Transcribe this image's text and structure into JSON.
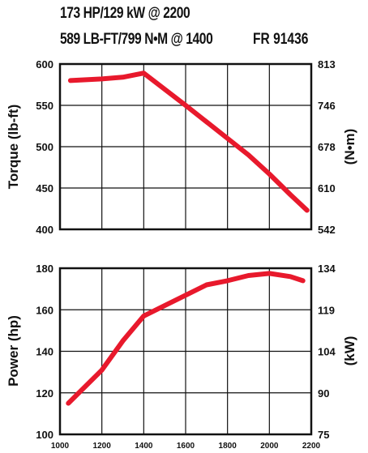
{
  "header": {
    "line1": "173 HP/129 kW @ 2200",
    "line2": "589 LB-FT/799 N•M @ 1400",
    "code": "FR 91436"
  },
  "colors": {
    "curve": "#e8192c",
    "grid": "#111111"
  },
  "chart_data": [
    {
      "type": "line",
      "title": "",
      "xlabel": "",
      "ylabel": "Torque (lb-ft)",
      "y2label": "(N•m)",
      "xlim": [
        1000,
        2200
      ],
      "ylim": [
        400,
        600
      ],
      "y2lim": [
        542,
        813
      ],
      "y_ticks": [
        "600",
        "550",
        "500",
        "450",
        "400"
      ],
      "y2_ticks": [
        "813",
        "746",
        "678",
        "610",
        "542"
      ],
      "grid": true,
      "series": [
        {
          "x": [
            1050,
            1200,
            1300,
            1400,
            1600,
            1800,
            1900,
            2000,
            2100,
            2180
          ],
          "y": [
            580,
            582,
            584,
            589,
            550,
            510,
            490,
            467,
            442,
            423
          ]
        }
      ]
    },
    {
      "type": "line",
      "title": "",
      "xlabel": "",
      "ylabel": "Power (hp)",
      "y2label": "(kW)",
      "xlim": [
        1000,
        2200
      ],
      "ylim": [
        100,
        180
      ],
      "y2lim": [
        75,
        134
      ],
      "y_ticks": [
        "180",
        "160",
        "140",
        "120",
        "100"
      ],
      "y2_ticks": [
        "134",
        "119",
        "104",
        "90",
        "75"
      ],
      "x_ticks": [
        "1000",
        "1200",
        "1400",
        "1600",
        "1800",
        "2000",
        "2200"
      ],
      "grid": true,
      "series": [
        {
          "x": [
            1040,
            1200,
            1300,
            1400,
            1500,
            1600,
            1700,
            1800,
            1900,
            2000,
            2100,
            2160
          ],
          "y": [
            115,
            131,
            145,
            157,
            162,
            167,
            172,
            174,
            176.5,
            177.5,
            176,
            174
          ]
        }
      ]
    }
  ]
}
